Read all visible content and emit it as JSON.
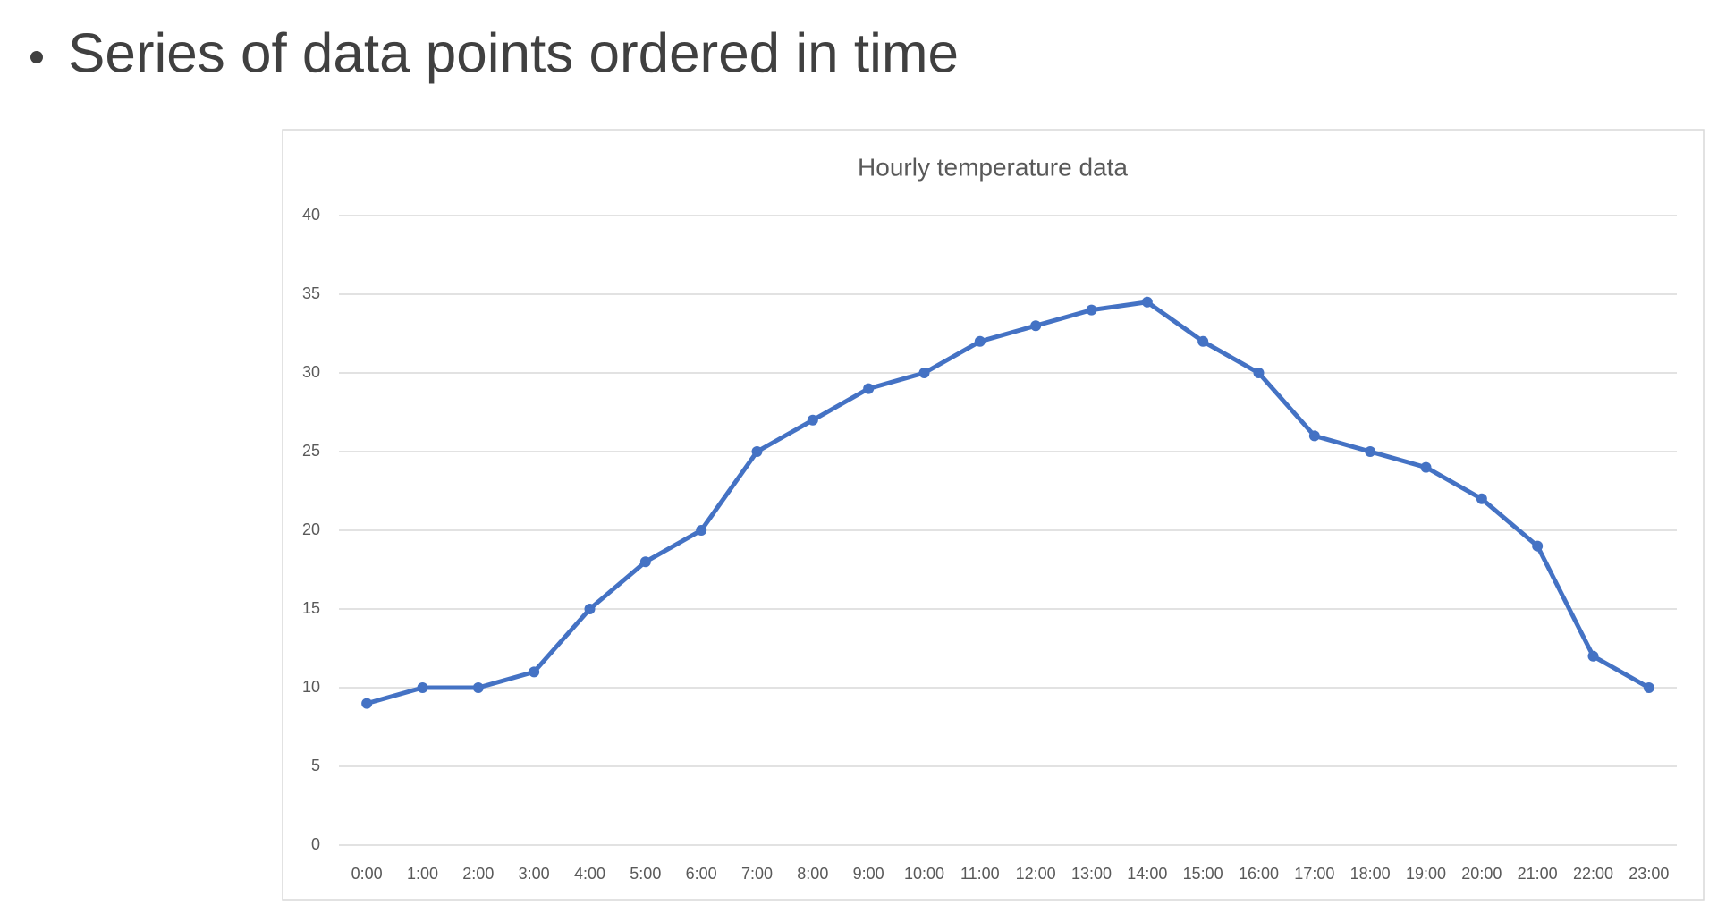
{
  "bullet": "Series of data points ordered in time",
  "chart_data": {
    "type": "line",
    "title": "Hourly temperature data",
    "categories": [
      "0:00",
      "1:00",
      "2:00",
      "3:00",
      "4:00",
      "5:00",
      "6:00",
      "7:00",
      "8:00",
      "9:00",
      "10:00",
      "11:00",
      "12:00",
      "13:00",
      "14:00",
      "15:00",
      "16:00",
      "17:00",
      "18:00",
      "19:00",
      "20:00",
      "21:00",
      "22:00",
      "23:00"
    ],
    "values": [
      9,
      10,
      10,
      11,
      15,
      18,
      20,
      25,
      27,
      29,
      30,
      32,
      33,
      34,
      34.5,
      32,
      30,
      26,
      25,
      24,
      22,
      19,
      12,
      10
    ],
    "color": "#4472c4",
    "ylim": [
      0,
      40
    ],
    "yticks": [
      0,
      5,
      10,
      15,
      20,
      25,
      30,
      35,
      40
    ],
    "grid": true
  }
}
